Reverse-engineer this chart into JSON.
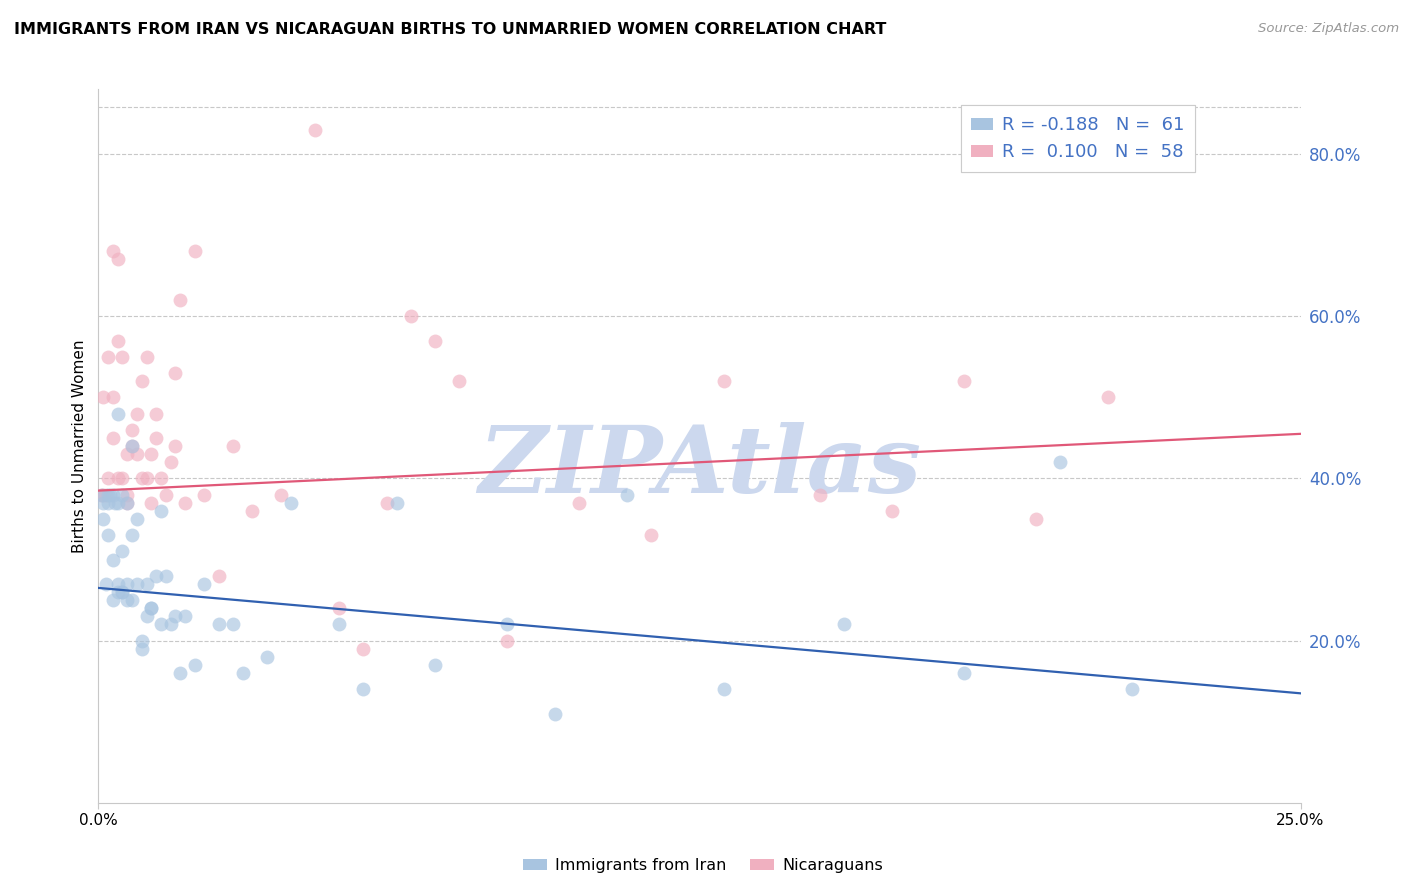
{
  "title": "IMMIGRANTS FROM IRAN VS NICARAGUAN BIRTHS TO UNMARRIED WOMEN CORRELATION CHART",
  "source": "Source: ZipAtlas.com",
  "ylabel_left": "Births to Unmarried Women",
  "xmin": 0.0,
  "xmax": 0.25,
  "ymin": 0.0,
  "ymax": 0.88,
  "yticks_right": [
    0.2,
    0.4,
    0.6,
    0.8
  ],
  "ytick_labels_right": [
    "20.0%",
    "40.0%",
    "60.0%",
    "80.0%"
  ],
  "xticks": [
    0.0,
    0.25
  ],
  "xtick_labels": [
    "0.0%",
    "25.0%"
  ],
  "legend_entry1": "R = -0.188   N =  61",
  "legend_entry2": "R =  0.100   N =  58",
  "legend_label1": "Immigrants from Iran",
  "legend_label2": "Nicaraguans",
  "color_blue": "#a8c4e0",
  "color_pink": "#f0b0c0",
  "color_blue_line": "#3060b0",
  "color_pink_line": "#e05878",
  "color_axis_right": "#4472c4",
  "color_legend_text": "#4472c4",
  "watermark_color": "#ccd8ee",
  "background_color": "#ffffff",
  "grid_color": "#c8c8c8",
  "blue_scatter_x": [
    0.0008,
    0.001,
    0.001,
    0.0015,
    0.002,
    0.002,
    0.002,
    0.0025,
    0.003,
    0.003,
    0.003,
    0.0035,
    0.004,
    0.004,
    0.004,
    0.004,
    0.005,
    0.005,
    0.005,
    0.005,
    0.006,
    0.006,
    0.006,
    0.007,
    0.007,
    0.007,
    0.008,
    0.008,
    0.009,
    0.009,
    0.01,
    0.01,
    0.011,
    0.011,
    0.012,
    0.013,
    0.013,
    0.014,
    0.015,
    0.016,
    0.017,
    0.018,
    0.02,
    0.022,
    0.025,
    0.028,
    0.03,
    0.035,
    0.04,
    0.05,
    0.055,
    0.062,
    0.07,
    0.085,
    0.095,
    0.11,
    0.13,
    0.155,
    0.18,
    0.2,
    0.215
  ],
  "blue_scatter_y": [
    0.38,
    0.37,
    0.35,
    0.27,
    0.37,
    0.38,
    0.33,
    0.38,
    0.38,
    0.3,
    0.25,
    0.37,
    0.27,
    0.26,
    0.37,
    0.48,
    0.38,
    0.31,
    0.26,
    0.26,
    0.37,
    0.27,
    0.25,
    0.44,
    0.33,
    0.25,
    0.27,
    0.35,
    0.2,
    0.19,
    0.27,
    0.23,
    0.24,
    0.24,
    0.28,
    0.36,
    0.22,
    0.28,
    0.22,
    0.23,
    0.16,
    0.23,
    0.17,
    0.27,
    0.22,
    0.22,
    0.16,
    0.18,
    0.37,
    0.22,
    0.14,
    0.37,
    0.17,
    0.22,
    0.11,
    0.38,
    0.14,
    0.22,
    0.16,
    0.42,
    0.14
  ],
  "pink_scatter_x": [
    0.0005,
    0.001,
    0.001,
    0.0015,
    0.002,
    0.002,
    0.003,
    0.003,
    0.003,
    0.004,
    0.004,
    0.004,
    0.005,
    0.005,
    0.006,
    0.006,
    0.006,
    0.007,
    0.007,
    0.008,
    0.008,
    0.009,
    0.009,
    0.01,
    0.01,
    0.011,
    0.011,
    0.012,
    0.012,
    0.013,
    0.014,
    0.015,
    0.016,
    0.016,
    0.017,
    0.018,
    0.02,
    0.022,
    0.025,
    0.028,
    0.032,
    0.038,
    0.045,
    0.05,
    0.055,
    0.06,
    0.065,
    0.07,
    0.075,
    0.085,
    0.1,
    0.115,
    0.13,
    0.15,
    0.165,
    0.18,
    0.195,
    0.21
  ],
  "pink_scatter_y": [
    0.38,
    0.5,
    0.38,
    0.38,
    0.55,
    0.4,
    0.5,
    0.45,
    0.68,
    0.4,
    0.67,
    0.57,
    0.4,
    0.55,
    0.43,
    0.38,
    0.37,
    0.44,
    0.46,
    0.43,
    0.48,
    0.4,
    0.52,
    0.4,
    0.55,
    0.43,
    0.37,
    0.45,
    0.48,
    0.4,
    0.38,
    0.42,
    0.53,
    0.44,
    0.62,
    0.37,
    0.68,
    0.38,
    0.28,
    0.44,
    0.36,
    0.38,
    0.83,
    0.24,
    0.19,
    0.37,
    0.6,
    0.57,
    0.52,
    0.2,
    0.37,
    0.33,
    0.52,
    0.38,
    0.36,
    0.52,
    0.35,
    0.5
  ],
  "blue_trend_x": [
    0.0,
    0.25
  ],
  "blue_trend_y": [
    0.265,
    0.135
  ],
  "pink_trend_x": [
    0.0,
    0.25
  ],
  "pink_trend_y": [
    0.385,
    0.455
  ]
}
